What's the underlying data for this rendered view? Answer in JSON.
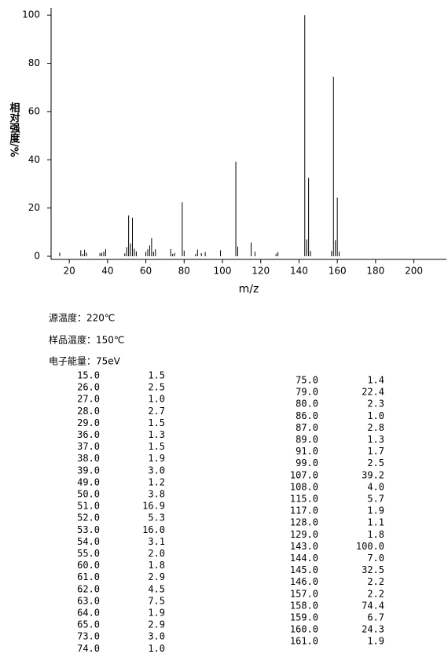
{
  "chart_data": {
    "type": "bar",
    "y_label": "相对强度/%",
    "x_label": "m/z",
    "color": "#000000",
    "x": [
      15,
      26,
      27,
      28,
      29,
      36,
      37,
      38,
      39,
      49,
      50,
      51,
      52,
      53,
      54,
      55,
      60,
      61,
      62,
      63,
      64,
      65,
      73,
      74,
      75,
      79,
      80,
      86,
      87,
      89,
      91,
      99,
      107,
      108,
      115,
      117,
      128,
      129,
      143,
      144,
      145,
      146,
      157,
      158,
      159,
      160,
      161
    ],
    "values": [
      1.5,
      2.5,
      1.0,
      2.7,
      1.5,
      1.3,
      1.5,
      1.9,
      3.0,
      1.2,
      3.8,
      16.9,
      5.3,
      16.0,
      3.1,
      2.0,
      1.8,
      2.9,
      4.5,
      7.5,
      1.9,
      2.9,
      3.0,
      1.0,
      1.4,
      22.4,
      2.3,
      1.0,
      2.8,
      1.3,
      1.7,
      2.5,
      39.2,
      4.0,
      5.7,
      1.9,
      1.1,
      1.8,
      100.0,
      7.0,
      32.5,
      2.2,
      2.2,
      74.4,
      6.7,
      24.3,
      1.9
    ],
    "xlim": [
      10.5,
      217
    ],
    "xticks": [
      20,
      40,
      60,
      80,
      100,
      120,
      140,
      160,
      180,
      200
    ],
    "ylim": [
      -1.3,
      103
    ],
    "yticks": [
      0,
      20,
      40,
      60,
      80,
      100
    ]
  },
  "conditions": [
    "源温度：220℃",
    "样品温度：150℃",
    "电子能量：75eV"
  ],
  "table": {
    "left": [
      [
        "15.0",
        "1.5"
      ],
      [
        "26.0",
        "2.5"
      ],
      [
        "27.0",
        "1.0"
      ],
      [
        "28.0",
        "2.7"
      ],
      [
        "29.0",
        "1.5"
      ],
      [
        "36.0",
        "1.3"
      ],
      [
        "37.0",
        "1.5"
      ],
      [
        "38.0",
        "1.9"
      ],
      [
        "39.0",
        "3.0"
      ],
      [
        "49.0",
        "1.2"
      ],
      [
        "50.0",
        "3.8"
      ],
      [
        "51.0",
        "16.9"
      ],
      [
        "52.0",
        "5.3"
      ],
      [
        "53.0",
        "16.0"
      ],
      [
        "54.0",
        "3.1"
      ],
      [
        "55.0",
        "2.0"
      ],
      [
        "60.0",
        "1.8"
      ],
      [
        "61.0",
        "2.9"
      ],
      [
        "62.0",
        "4.5"
      ],
      [
        "63.0",
        "7.5"
      ],
      [
        "64.0",
        "1.9"
      ],
      [
        "65.0",
        "2.9"
      ],
      [
        "73.0",
        "3.0"
      ],
      [
        "74.0",
        "1.0"
      ]
    ],
    "right": [
      [
        "75.0",
        "1.4"
      ],
      [
        "79.0",
        "22.4"
      ],
      [
        "80.0",
        "2.3"
      ],
      [
        "86.0",
        "1.0"
      ],
      [
        "87.0",
        "2.8"
      ],
      [
        "89.0",
        "1.3"
      ],
      [
        "91.0",
        "1.7"
      ],
      [
        "99.0",
        "2.5"
      ],
      [
        "107.0",
        "39.2"
      ],
      [
        "108.0",
        "4.0"
      ],
      [
        "115.0",
        "5.7"
      ],
      [
        "117.0",
        "1.9"
      ],
      [
        "128.0",
        "1.1"
      ],
      [
        "129.0",
        "1.8"
      ],
      [
        "143.0",
        "100.0"
      ],
      [
        "144.0",
        "7.0"
      ],
      [
        "145.0",
        "32.5"
      ],
      [
        "146.0",
        "2.2"
      ],
      [
        "157.0",
        "2.2"
      ],
      [
        "158.0",
        "74.4"
      ],
      [
        "159.0",
        "6.7"
      ],
      [
        "160.0",
        "24.3"
      ],
      [
        "161.0",
        "1.9"
      ]
    ]
  }
}
